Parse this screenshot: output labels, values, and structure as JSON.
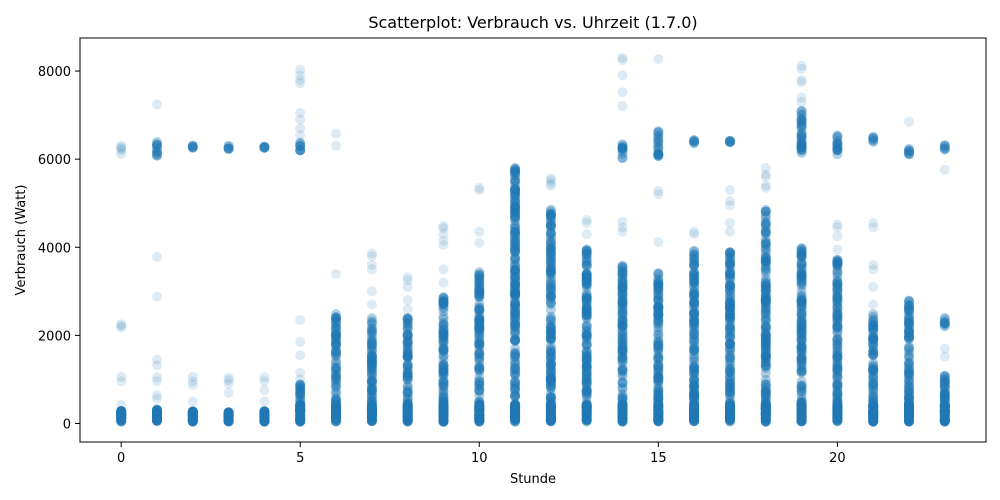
{
  "chart_data": {
    "type": "scatter",
    "title": "Scatterplot: Verbrauch vs. Uhrzeit (1.7.0)",
    "xlabel": "Stunde",
    "ylabel": "Verbrauch (Watt)",
    "xlim": [
      -1.15,
      24.15
    ],
    "ylim": [
      -420,
      8750
    ],
    "xticks": [
      0,
      5,
      10,
      15,
      20
    ],
    "yticks": [
      0,
      2000,
      4000,
      6000,
      8000
    ],
    "grid": false,
    "point_color": "#1f77b4",
    "point_alpha": 0.15,
    "groups": [
      {
        "x": 0,
        "ranges": [
          [
            40,
            300
          ]
        ],
        "points": [
          960,
          1060,
          2180,
          2220,
          2250,
          6120,
          6200,
          6240,
          6270,
          6300,
          420
        ]
      },
      {
        "x": 1,
        "ranges": [
          [
            40,
            320
          ],
          [
            6080,
            6420
          ]
        ],
        "points": [
          960,
          1050,
          1320,
          1450,
          2880,
          3780,
          7240,
          560,
          640
        ]
      },
      {
        "x": 2,
        "ranges": [
          [
            40,
            280
          ],
          [
            6240,
            6330
          ]
        ],
        "points": [
          880,
          960,
          1060,
          500
        ]
      },
      {
        "x": 3,
        "ranges": [
          [
            40,
            260
          ],
          [
            6230,
            6310
          ]
        ],
        "points": [
          700,
          900,
          980,
          1040
        ]
      },
      {
        "x": 4,
        "ranges": [
          [
            40,
            280
          ],
          [
            6180,
            6300
          ]
        ],
        "points": [
          500,
          760,
          960,
          1050
        ]
      },
      {
        "x": 5,
        "ranges": [
          [
            40,
            900
          ],
          [
            6140,
            6400
          ]
        ],
        "points": [
          1000,
          1150,
          1550,
          1850,
          2350,
          6550,
          6700,
          6900,
          7050,
          7720,
          7800,
          7900,
          8030
        ]
      },
      {
        "x": 6,
        "ranges": [
          [
            40,
            2500
          ]
        ],
        "points": [
          3390,
          6300,
          6580
        ]
      },
      {
        "x": 7,
        "ranges": [
          [
            40,
            2400
          ]
        ],
        "points": [
          2700,
          3000,
          3500,
          3600,
          3800,
          3860
        ]
      },
      {
        "x": 8,
        "ranges": [
          [
            40,
            2400
          ]
        ],
        "points": [
          2600,
          2800,
          3100,
          3250,
          3320
        ]
      },
      {
        "x": 9,
        "ranges": [
          [
            40,
            2950
          ]
        ],
        "points": [
          3200,
          3500,
          4050,
          4150,
          4300,
          4430,
          4480
        ]
      },
      {
        "x": 10,
        "ranges": [
          [
            40,
            3500
          ]
        ],
        "points": [
          4100,
          4350,
          5300,
          5350
        ]
      },
      {
        "x": 11,
        "ranges": [
          [
            40,
            5850
          ]
        ],
        "points": []
      },
      {
        "x": 12,
        "ranges": [
          [
            40,
            4850
          ]
        ],
        "points": [
          5400,
          5450,
          5520,
          5560
        ]
      },
      {
        "x": 13,
        "ranges": [
          [
            40,
            4000
          ]
        ],
        "points": [
          4300,
          4550,
          4620
        ]
      },
      {
        "x": 14,
        "ranges": [
          [
            40,
            3600
          ],
          [
            6020,
            6380
          ]
        ],
        "points": [
          4350,
          4450,
          4580,
          7200,
          7520,
          7900,
          8250,
          8300
        ]
      },
      {
        "x": 15,
        "ranges": [
          [
            40,
            3450
          ],
          [
            6050,
            6650
          ]
        ],
        "points": [
          4120,
          5200,
          5280,
          8270
        ]
      },
      {
        "x": 16,
        "ranges": [
          [
            40,
            3950
          ],
          [
            6350,
            6450
          ]
        ],
        "points": [
          4300,
          4350
        ]
      },
      {
        "x": 17,
        "ranges": [
          [
            40,
            3900
          ],
          [
            6350,
            6420
          ]
        ],
        "points": [
          4350,
          4550,
          4950,
          5050,
          5300
        ]
      },
      {
        "x": 18,
        "ranges": [
          [
            40,
            4850
          ]
        ],
        "points": [
          5350,
          5400,
          5600,
          5650,
          5800
        ]
      },
      {
        "x": 19,
        "ranges": [
          [
            40,
            4050
          ],
          [
            6100,
            7100
          ]
        ],
        "points": [
          7300,
          7400,
          7750,
          7800,
          8050,
          8120
        ]
      },
      {
        "x": 20,
        "ranges": [
          [
            40,
            3800
          ],
          [
            6080,
            6550
          ]
        ],
        "points": [
          3950,
          4250,
          4450,
          4520
        ]
      },
      {
        "x": 21,
        "ranges": [
          [
            40,
            2500
          ],
          [
            6380,
            6550
          ]
        ],
        "points": [
          2700,
          3100,
          3500,
          3600,
          4450,
          4550
        ]
      },
      {
        "x": 22,
        "ranges": [
          [
            40,
            2850
          ],
          [
            6100,
            6320
          ]
        ],
        "points": [
          6850
        ]
      },
      {
        "x": 23,
        "ranges": [
          [
            40,
            1150
          ],
          [
            2200,
            2450
          ],
          [
            6180,
            6320
          ]
        ],
        "points": [
          1520,
          1700,
          5760
        ]
      }
    ]
  }
}
